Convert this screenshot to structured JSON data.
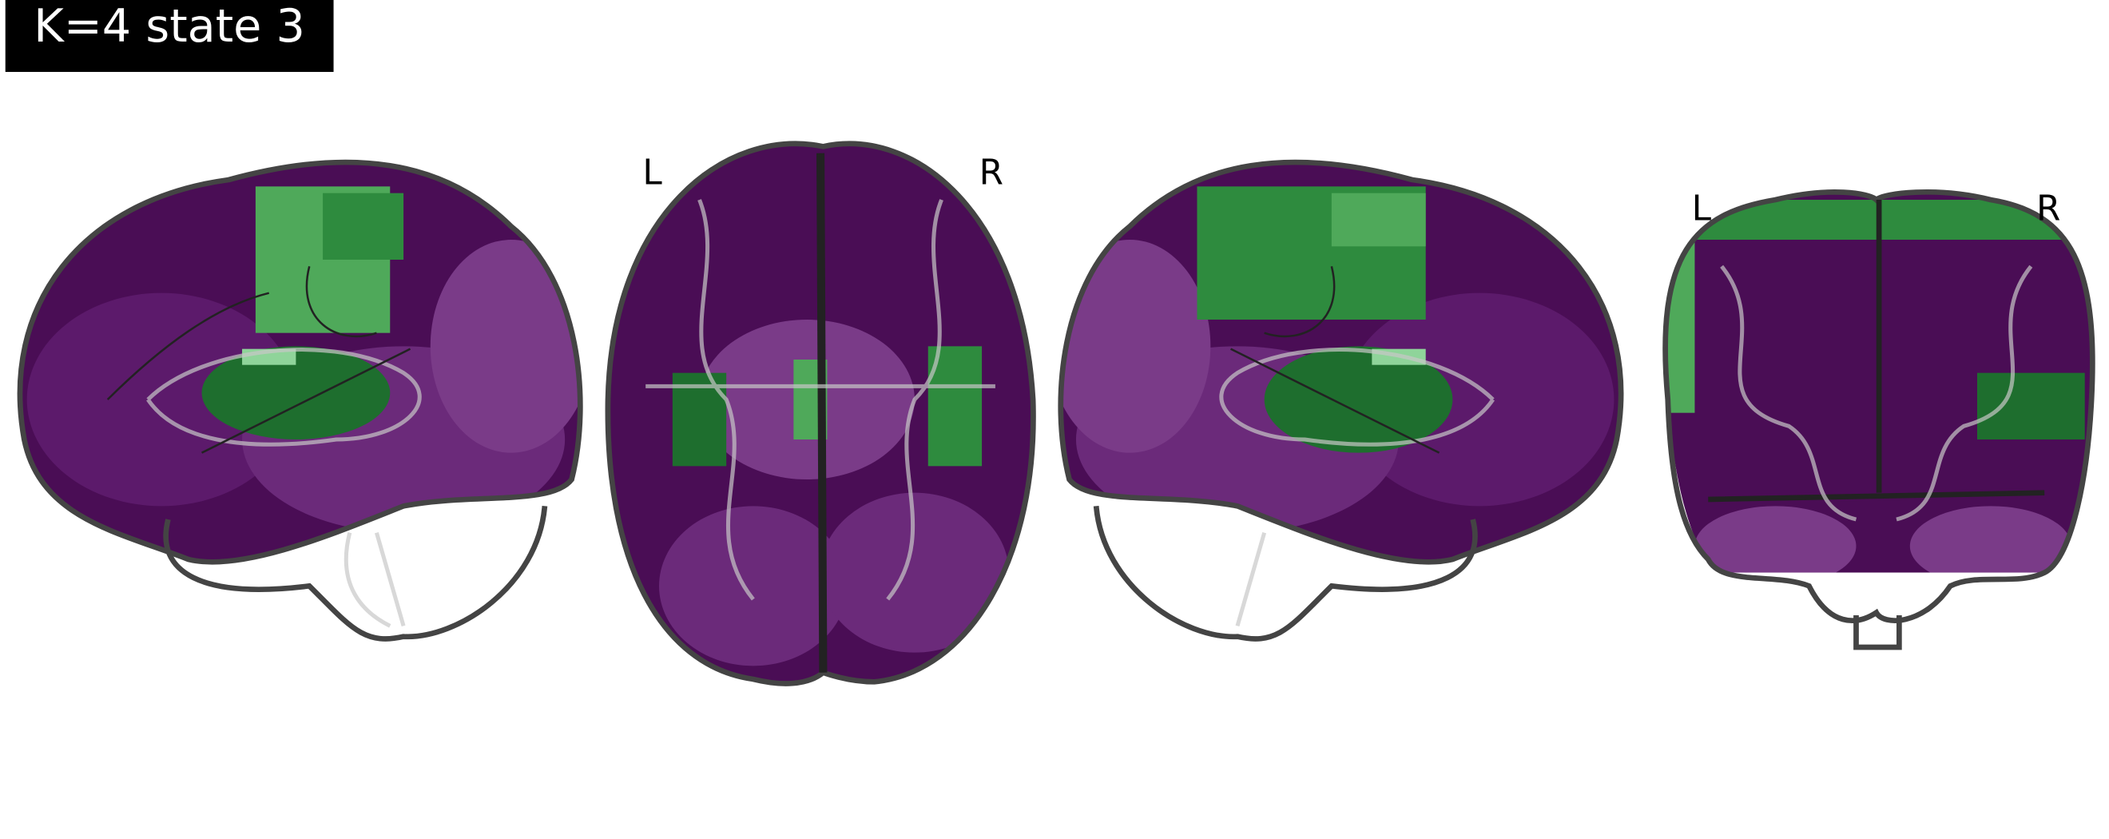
{
  "title": "K=4 state 3",
  "axial_labels": [
    "L",
    "R"
  ],
  "coronal_labels": [
    "L",
    "R"
  ]
}
